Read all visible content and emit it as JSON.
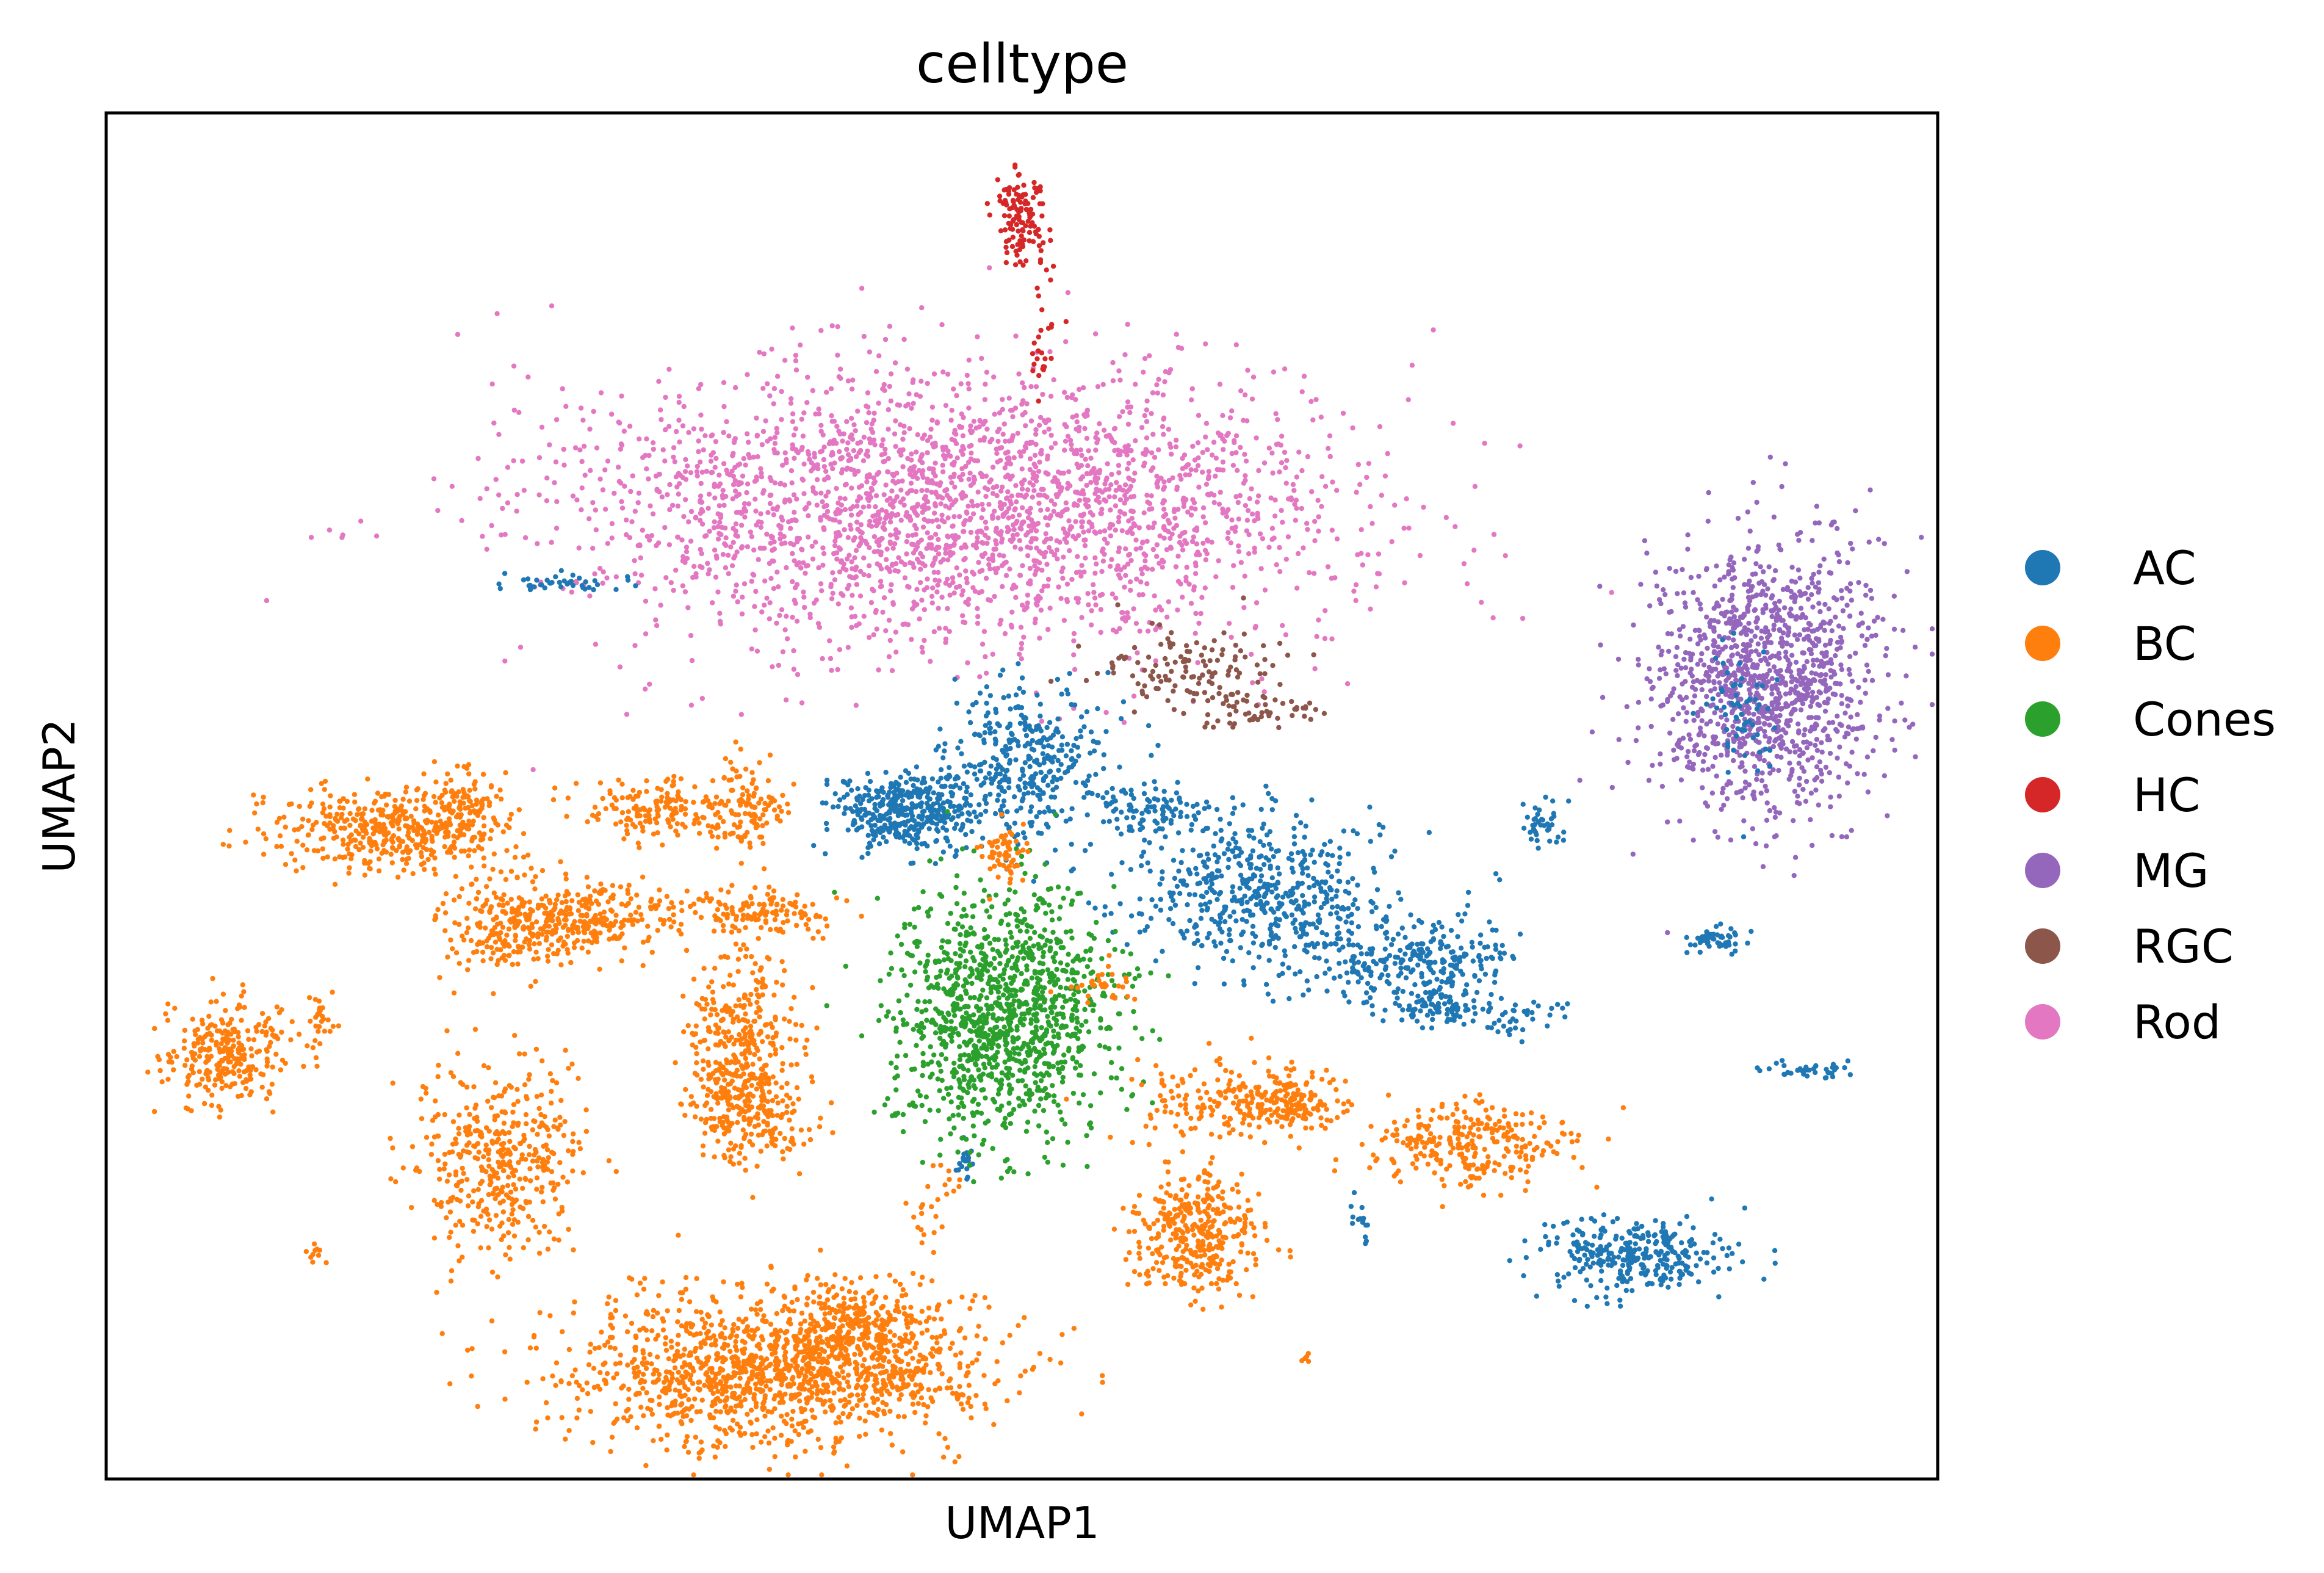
{
  "chart_data": {
    "type": "scatter",
    "title": "celltype",
    "xlabel": "UMAP1",
    "ylabel": "UMAP2",
    "xlim": [
      0,
      100
    ],
    "ylim": [
      0,
      100
    ],
    "grid": false,
    "legend_position": "right",
    "series": [
      {
        "name": "AC",
        "color": "#1f77b4"
      },
      {
        "name": "BC",
        "color": "#ff7f0e"
      },
      {
        "name": "Cones",
        "color": "#2ca02c"
      },
      {
        "name": "HC",
        "color": "#d62728"
      },
      {
        "name": "MG",
        "color": "#9467bd"
      },
      {
        "name": "RGC",
        "color": "#8c564b"
      },
      {
        "name": "Rod",
        "color": "#e377c2"
      }
    ],
    "clusters": [
      {
        "series": "Rod",
        "cx": 46.5,
        "cy": 71.0,
        "sx": 10.5,
        "sy": 5.0,
        "n": 2600
      },
      {
        "series": "HC",
        "cx": 50.0,
        "cy": 92.5,
        "sx": 0.6,
        "sy": 1.6,
        "n": 120
      },
      {
        "series": "HC",
        "cx": 51.0,
        "cy": 84.0,
        "sx": 0.35,
        "sy": 2.6,
        "n": 30
      },
      {
        "series": "RGC",
        "cx": 59.0,
        "cy": 59.5,
        "sx": 2.4,
        "sy": 1.6,
        "n": 130
      },
      {
        "series": "RGC",
        "cx": 63.0,
        "cy": 56.0,
        "sx": 1.6,
        "sy": 0.7,
        "n": 50
      },
      {
        "series": "MG",
        "cx": 90.5,
        "cy": 59.0,
        "sx": 3.2,
        "sy": 5.0,
        "n": 1200
      },
      {
        "series": "AC",
        "cx": 89.0,
        "cy": 56.5,
        "sx": 1.0,
        "sy": 3.0,
        "n": 60
      },
      {
        "series": "AC",
        "cx": 24.5,
        "cy": 65.5,
        "sx": 2.0,
        "sy": 0.35,
        "n": 40
      },
      {
        "series": "AC",
        "cx": 44.0,
        "cy": 49.0,
        "sx": 2.0,
        "sy": 1.4,
        "n": 420
      },
      {
        "series": "AC",
        "cx": 50.5,
        "cy": 52.5,
        "sx": 2.2,
        "sy": 3.2,
        "n": 340
      },
      {
        "series": "AC",
        "cx": 57.0,
        "cy": 49.0,
        "sx": 1.8,
        "sy": 1.0,
        "n": 100
      },
      {
        "series": "AC",
        "cx": 63.0,
        "cy": 43.0,
        "sx": 3.5,
        "sy": 2.8,
        "n": 520
      },
      {
        "series": "AC",
        "cx": 71.0,
        "cy": 38.0,
        "sx": 3.2,
        "sy": 1.8,
        "n": 300
      },
      {
        "series": "AC",
        "cx": 72.5,
        "cy": 34.5,
        "sx": 1.2,
        "sy": 0.6,
        "n": 70
      },
      {
        "series": "AC",
        "cx": 76.5,
        "cy": 34.0,
        "sx": 1.5,
        "sy": 0.7,
        "n": 40
      },
      {
        "series": "AC",
        "cx": 78.5,
        "cy": 48.0,
        "sx": 0.5,
        "sy": 0.9,
        "n": 40
      },
      {
        "series": "AC",
        "cx": 87.5,
        "cy": 39.5,
        "sx": 0.9,
        "sy": 0.6,
        "n": 50
      },
      {
        "series": "AC",
        "cx": 93.0,
        "cy": 30.0,
        "sx": 1.4,
        "sy": 0.3,
        "n": 40
      },
      {
        "series": "AC",
        "cx": 83.5,
        "cy": 16.5,
        "sx": 2.5,
        "sy": 1.3,
        "n": 320
      },
      {
        "series": "AC",
        "cx": 68.5,
        "cy": 18.5,
        "sx": 0.3,
        "sy": 0.8,
        "n": 15
      },
      {
        "series": "AC",
        "cx": 47.0,
        "cy": 23.5,
        "sx": 0.3,
        "sy": 0.9,
        "n": 20
      },
      {
        "series": "Cones",
        "cx": 49.0,
        "cy": 34.0,
        "sx": 3.0,
        "sy": 4.5,
        "n": 1200
      },
      {
        "series": "BC",
        "cx": 15.5,
        "cy": 47.5,
        "sx": 3.2,
        "sy": 1.6,
        "n": 450
      },
      {
        "series": "BC",
        "cx": 19.5,
        "cy": 49.0,
        "sx": 0.7,
        "sy": 1.6,
        "n": 80
      },
      {
        "series": "BC",
        "cx": 22.0,
        "cy": 40.5,
        "sx": 2.0,
        "sy": 1.6,
        "n": 230
      },
      {
        "series": "BC",
        "cx": 26.5,
        "cy": 41.0,
        "sx": 2.0,
        "sy": 1.4,
        "n": 230
      },
      {
        "series": "BC",
        "cx": 30.0,
        "cy": 49.0,
        "sx": 2.2,
        "sy": 1.1,
        "n": 160
      },
      {
        "series": "BC",
        "cx": 35.0,
        "cy": 49.0,
        "sx": 0.9,
        "sy": 1.6,
        "n": 120
      },
      {
        "series": "BC",
        "cx": 35.5,
        "cy": 41.5,
        "sx": 2.2,
        "sy": 0.9,
        "n": 140
      },
      {
        "series": "BC",
        "cx": 49.0,
        "cy": 46.0,
        "sx": 0.6,
        "sy": 1.0,
        "n": 60
      },
      {
        "series": "BC",
        "cx": 6.5,
        "cy": 31.0,
        "sx": 1.8,
        "sy": 1.8,
        "n": 280
      },
      {
        "series": "BC",
        "cx": 11.5,
        "cy": 33.5,
        "sx": 0.5,
        "sy": 1.1,
        "n": 30
      },
      {
        "series": "BC",
        "cx": 34.5,
        "cy": 31.5,
        "sx": 1.4,
        "sy": 3.5,
        "n": 350
      },
      {
        "series": "BC",
        "cx": 35.5,
        "cy": 27.0,
        "sx": 1.6,
        "sy": 2.0,
        "n": 180
      },
      {
        "series": "BC",
        "cx": 21.5,
        "cy": 23.5,
        "sx": 2.2,
        "sy": 3.5,
        "n": 420
      },
      {
        "series": "BC",
        "cx": 11.5,
        "cy": 16.5,
        "sx": 0.3,
        "sy": 0.3,
        "n": 10
      },
      {
        "series": "BC",
        "cx": 36.5,
        "cy": 8.0,
        "sx": 5.5,
        "sy": 2.8,
        "n": 1300
      },
      {
        "series": "BC",
        "cx": 41.5,
        "cy": 11.0,
        "sx": 2.4,
        "sy": 2.0,
        "n": 300
      },
      {
        "series": "BC",
        "cx": 45.0,
        "cy": 20.5,
        "sx": 0.8,
        "sy": 1.6,
        "n": 25
      },
      {
        "series": "BC",
        "cx": 61.0,
        "cy": 27.5,
        "sx": 2.5,
        "sy": 1.4,
        "n": 150
      },
      {
        "series": "BC",
        "cx": 64.5,
        "cy": 27.5,
        "sx": 1.5,
        "sy": 1.2,
        "n": 150
      },
      {
        "series": "BC",
        "cx": 59.5,
        "cy": 18.0,
        "sx": 1.6,
        "sy": 2.2,
        "n": 360
      },
      {
        "series": "BC",
        "cx": 74.5,
        "cy": 24.5,
        "sx": 2.6,
        "sy": 1.4,
        "n": 280
      },
      {
        "series": "BC",
        "cx": 54.5,
        "cy": 36.0,
        "sx": 0.8,
        "sy": 0.6,
        "n": 30
      },
      {
        "series": "BC",
        "cx": 65.5,
        "cy": 9.0,
        "sx": 0.2,
        "sy": 0.2,
        "n": 6
      },
      {
        "series": "BC",
        "cx": 46.5,
        "cy": 6.0,
        "sx": 0.4,
        "sy": 0.2,
        "n": 6
      }
    ]
  }
}
